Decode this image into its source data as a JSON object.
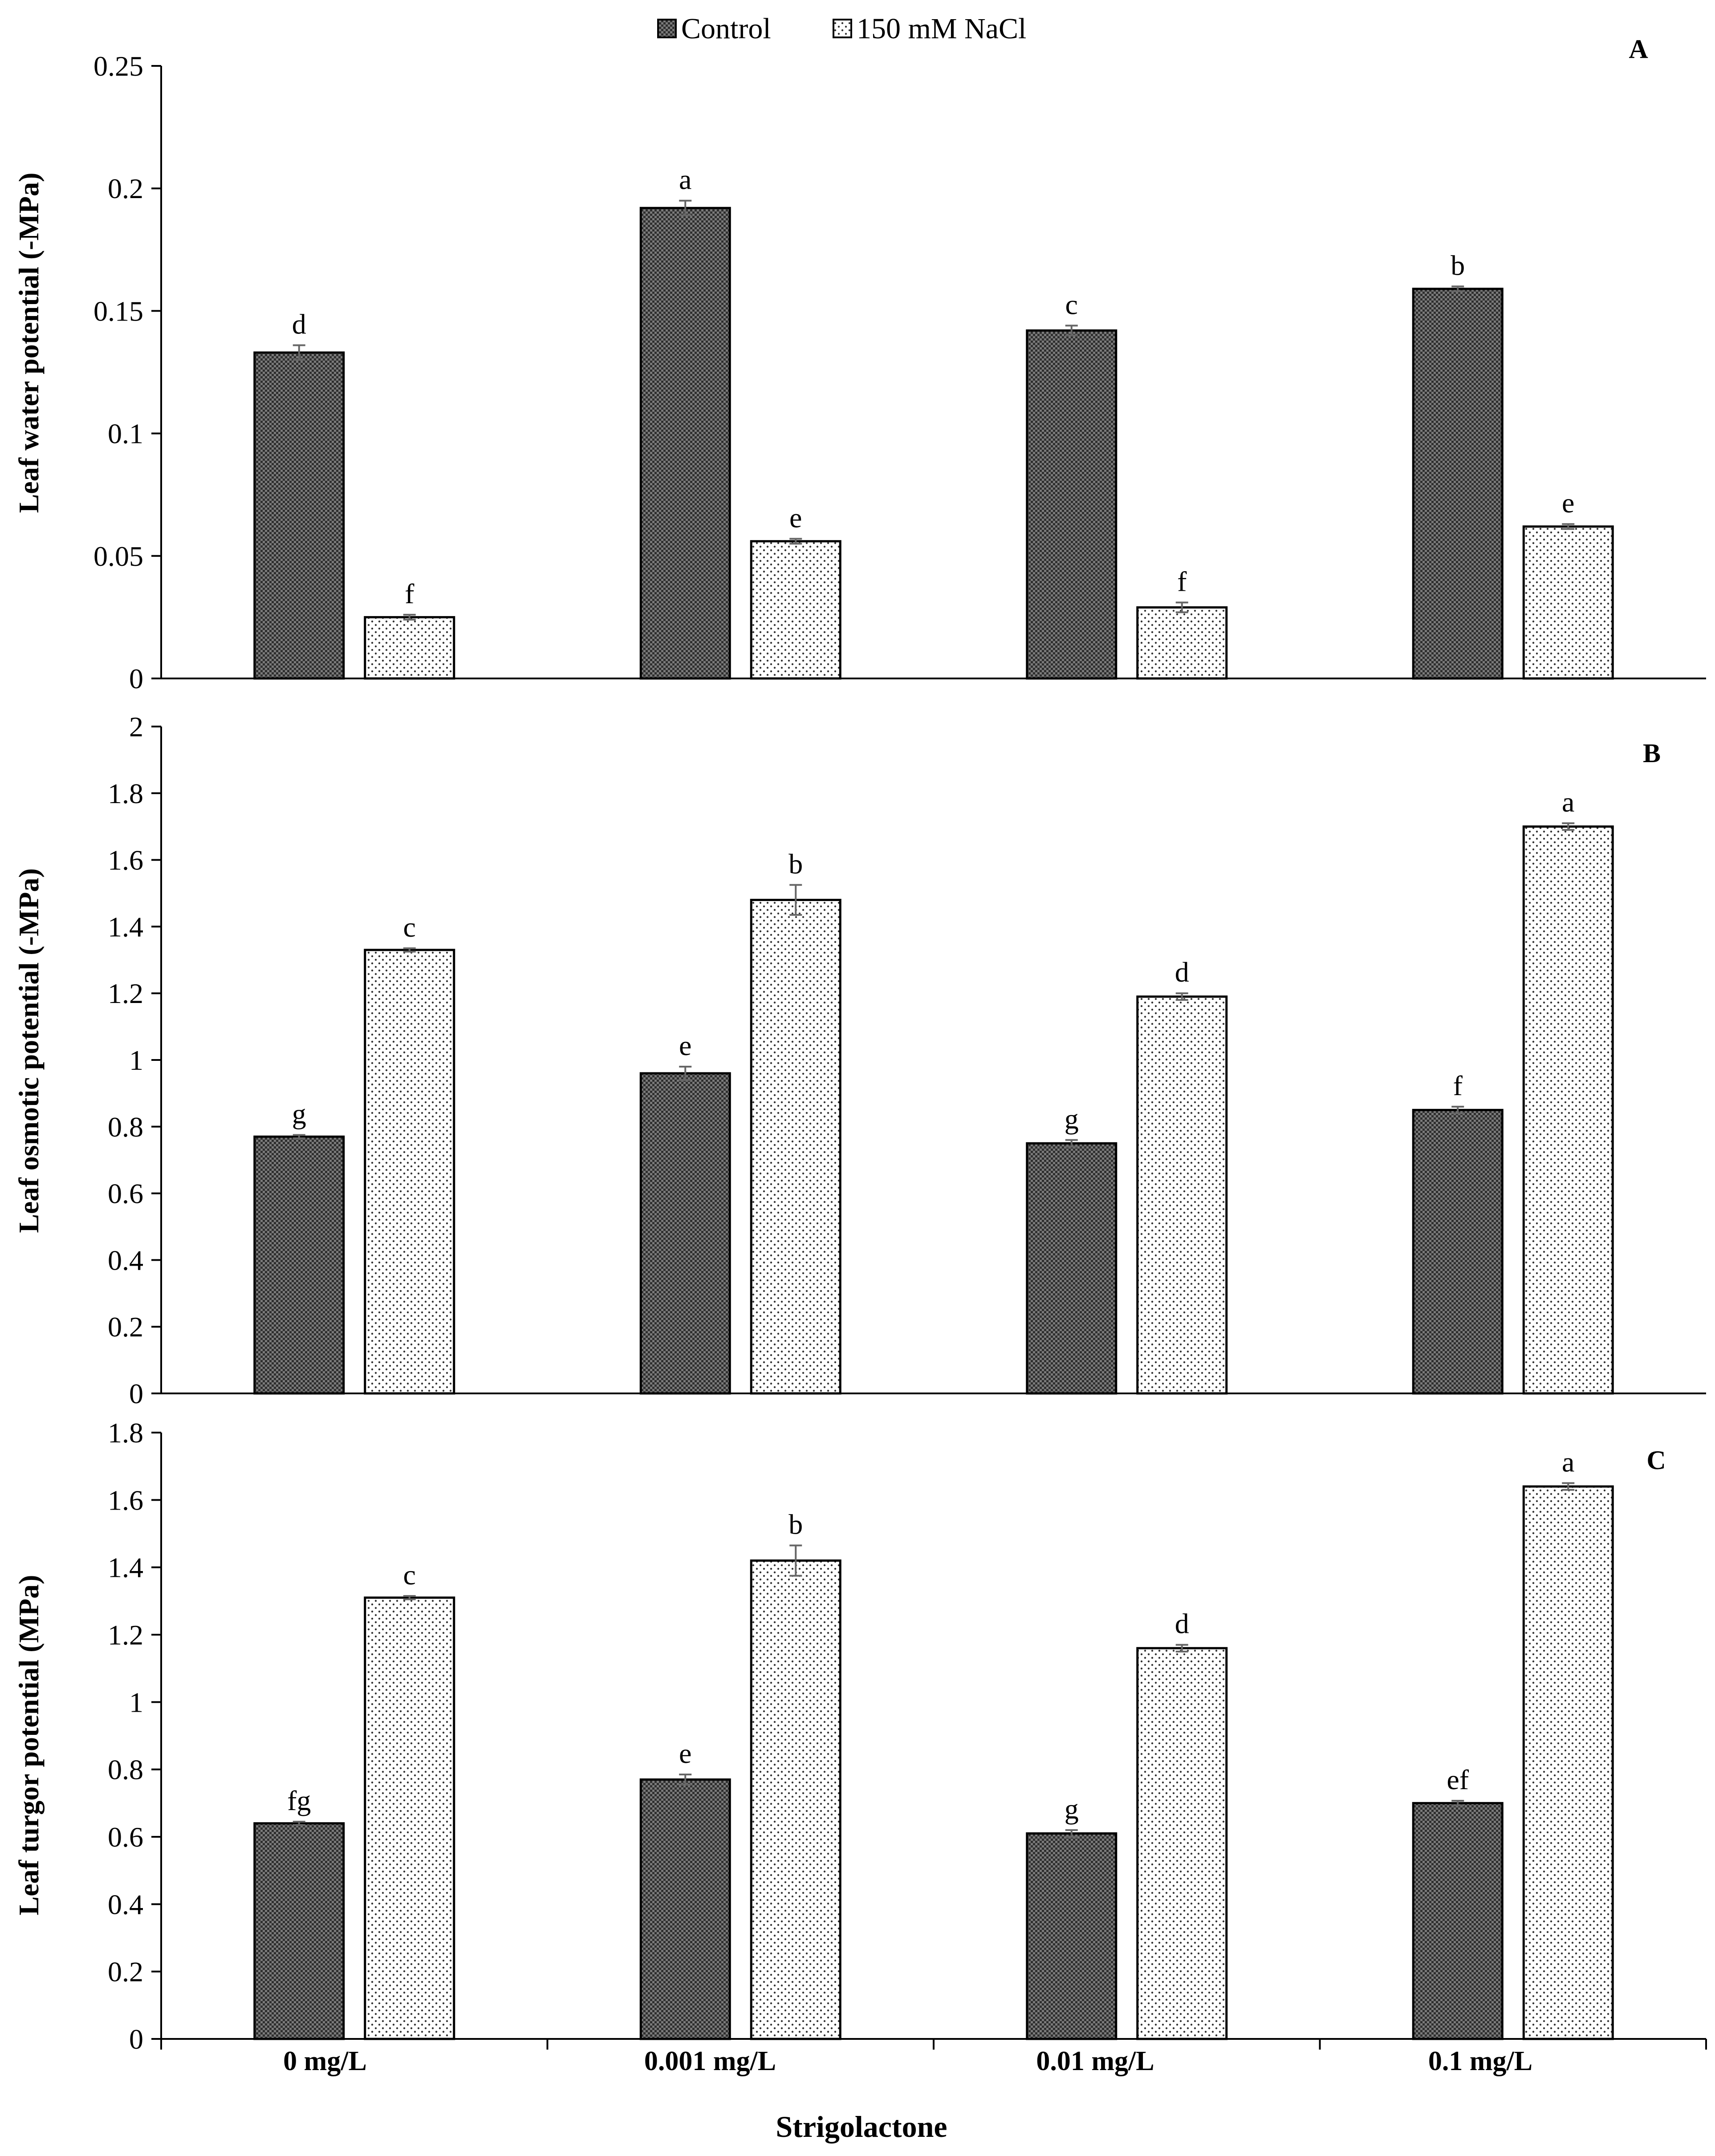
{
  "legend": [
    {
      "name": "Control",
      "pattern": "checker"
    },
    {
      "name": "150 mM NaCl",
      "pattern": "dots"
    }
  ],
  "x_axis": {
    "title": "Strigolactone",
    "categories": [
      "0 mg/L",
      "0.001 mg/L",
      "0.01 mg/L",
      "0.1 mg/L"
    ]
  },
  "colors": {
    "control_fill": "#555555",
    "nacl_fill": "#ffffff",
    "stroke": "#000000",
    "error_bar": "#666666"
  },
  "chart_data": [
    {
      "type": "bar",
      "panel": "A",
      "ylabel": "Leaf water potential (-MPa)",
      "ylim": [
        0,
        0.25
      ],
      "yticks": [
        0,
        0.05,
        0.1,
        0.15,
        0.2,
        0.25
      ],
      "ytick_labels": [
        "0",
        "0.05",
        "0.1",
        "0.15",
        "0.2",
        "0.25"
      ],
      "categories": [
        "0 mg/L",
        "0.001 mg/L",
        "0.01 mg/L",
        "0.1 mg/L"
      ],
      "series": [
        {
          "name": "Control",
          "values": [
            0.133,
            0.192,
            0.142,
            0.159
          ],
          "errors": [
            0.003,
            0.003,
            0.002,
            0.001
          ],
          "labels": [
            "d",
            "a",
            "c",
            "b"
          ]
        },
        {
          "name": "150 mM NaCl",
          "values": [
            0.025,
            0.056,
            0.029,
            0.062
          ],
          "errors": [
            0.001,
            0.001,
            0.002,
            0.001
          ],
          "labels": [
            "f",
            "e",
            "f",
            "e"
          ]
        }
      ]
    },
    {
      "type": "bar",
      "panel": "B",
      "ylabel": "Leaf osmotic potential (-MPa)",
      "ylim": [
        0,
        2
      ],
      "yticks": [
        0,
        0.2,
        0.4,
        0.6,
        0.8,
        1,
        1.2,
        1.4,
        1.6,
        1.8,
        2
      ],
      "ytick_labels": [
        "0",
        "0.2",
        "0.4",
        "0.6",
        "0.8",
        "1",
        "1.2",
        "1.4",
        "1.6",
        "1.8",
        "2"
      ],
      "categories": [
        "0 mg/L",
        "0.001 mg/L",
        "0.01 mg/L",
        "0.1 mg/L"
      ],
      "series": [
        {
          "name": "Control",
          "values": [
            0.77,
            0.96,
            0.75,
            0.85
          ],
          "errors": [
            0.005,
            0.02,
            0.01,
            0.01
          ],
          "labels": [
            "g",
            "e",
            "g",
            "f"
          ]
        },
        {
          "name": "150 mM NaCl",
          "values": [
            1.33,
            1.48,
            1.19,
            1.7
          ],
          "errors": [
            0.005,
            0.045,
            0.01,
            0.01
          ],
          "labels": [
            "c",
            "b",
            "d",
            "a"
          ]
        }
      ]
    },
    {
      "type": "bar",
      "panel": "C",
      "ylabel": "Leaf turgor potential (MPa)",
      "ylim": [
        0,
        1.8
      ],
      "yticks": [
        0,
        0.2,
        0.4,
        0.6,
        0.8,
        1,
        1.2,
        1.4,
        1.6,
        1.8
      ],
      "ytick_labels": [
        "0",
        "0.2",
        "0.4",
        "0.6",
        "0.8",
        "1",
        "1.2",
        "1.4",
        "1.6",
        "1.8"
      ],
      "categories": [
        "0 mg/L",
        "0.001 mg/L",
        "0.01 mg/L",
        "0.1 mg/L"
      ],
      "series": [
        {
          "name": "Control",
          "values": [
            0.64,
            0.77,
            0.61,
            0.7
          ],
          "errors": [
            0.005,
            0.015,
            0.01,
            0.007
          ],
          "labels": [
            "fg",
            "e",
            "g",
            "ef"
          ]
        },
        {
          "name": "150 mM NaCl",
          "values": [
            1.31,
            1.42,
            1.16,
            1.64
          ],
          "errors": [
            0.005,
            0.045,
            0.01,
            0.01
          ],
          "labels": [
            "c",
            "b",
            "d",
            "a"
          ]
        }
      ]
    }
  ]
}
